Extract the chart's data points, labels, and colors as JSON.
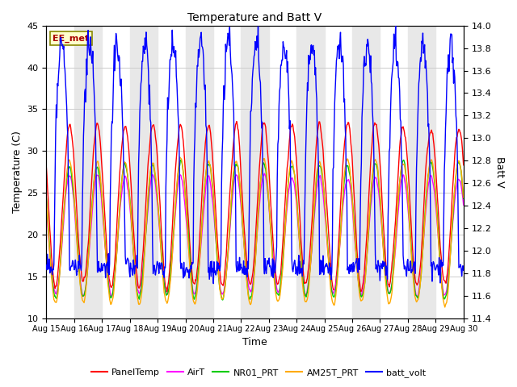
{
  "title": "Temperature and Batt V",
  "xlabel": "Time",
  "ylabel_left": "Temperature (C)",
  "ylabel_right": "Batt V",
  "annotation": "EE_met",
  "ylim_left": [
    10,
    45
  ],
  "ylim_right": [
    11.4,
    14.0
  ],
  "x_tick_labels": [
    "Aug 15",
    "Aug 16",
    "Aug 17",
    "Aug 18",
    "Aug 19",
    "Aug 20",
    "Aug 21",
    "Aug 22",
    "Aug 23",
    "Aug 24",
    "Aug 25",
    "Aug 26",
    "Aug 27",
    "Aug 28",
    "Aug 29",
    "Aug 30"
  ],
  "colors": {
    "PanelTemp": "#ff0000",
    "AirT": "#ff00ff",
    "NR01_PRT": "#00cc00",
    "AM25T_PRT": "#ffaa00",
    "batt_volt": "#0000ff"
  },
  "bg_band_color": "#e8e8e8",
  "lw": 1.0
}
